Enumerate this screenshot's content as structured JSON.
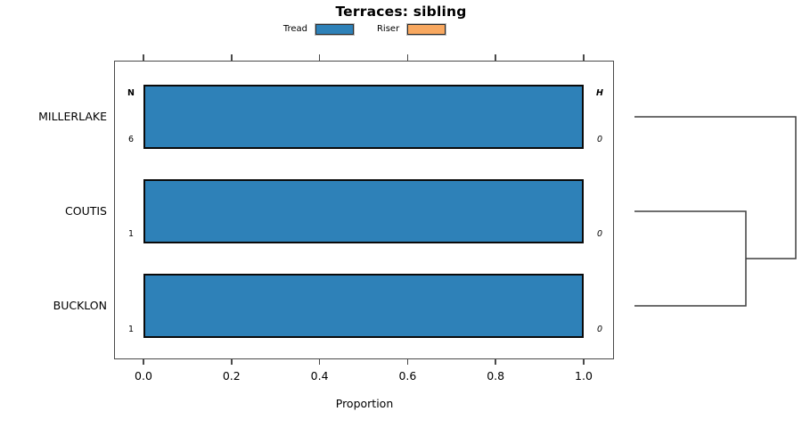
{
  "title": "Terraces: sibling",
  "legend": {
    "items": [
      {
        "label": "Tread",
        "color": "#2E81B8"
      },
      {
        "label": "Riser",
        "color": "#F8A860"
      }
    ]
  },
  "chart_data": {
    "type": "bar",
    "orientation": "horizontal",
    "title": "Terraces: sibling",
    "categories": [
      "MILLERLAKE",
      "COUTIS",
      "BUCKLON"
    ],
    "series": [
      {
        "name": "Tread",
        "color": "#2E81B8",
        "values": [
          1.0,
          1.0,
          1.0
        ]
      },
      {
        "name": "Riser",
        "color": "#F8A860",
        "values": [
          0.0,
          0.0,
          0.0
        ]
      }
    ],
    "xlabel": "Proportion",
    "xlim": [
      0.0,
      1.0
    ],
    "xticks": [
      0.0,
      0.2,
      0.4,
      0.6,
      0.8,
      1.0
    ],
    "xtick_labels": [
      "0.0",
      "0.2",
      "0.4",
      "0.6",
      "0.8",
      "1.0"
    ],
    "grid": false,
    "legend_position": "top",
    "annotations": {
      "n_header": "N",
      "h_header": "H",
      "rows": [
        {
          "category": "MILLERLAKE",
          "n": "6",
          "h": "0"
        },
        {
          "category": "COUTIS",
          "n": "1",
          "h": "0"
        },
        {
          "category": "BUCKLON",
          "n": "1",
          "h": "0"
        }
      ]
    },
    "dendrogram": {
      "position": "right",
      "leaf_order": [
        "MILLERLAKE",
        "COUTIS",
        "BUCKLON"
      ],
      "merges": [
        {
          "members": [
            "COUTIS",
            "BUCKLON"
          ]
        },
        {
          "members": [
            "MILLERLAKE",
            "COUTIS+BUCKLON"
          ]
        }
      ]
    }
  }
}
